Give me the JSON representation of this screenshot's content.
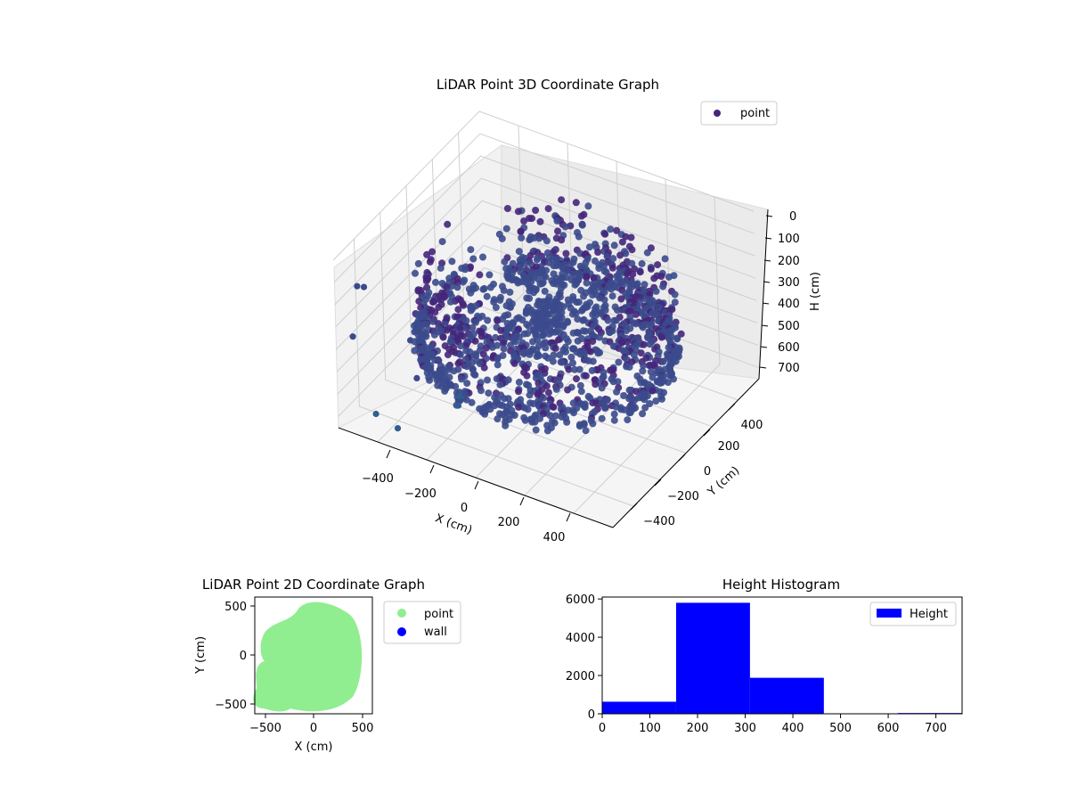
{
  "figure": {
    "chart_data": [
      {
        "type": "scatter3d",
        "title": "LiDAR Point 3D Coordinate Graph",
        "xlabel": "X (cm)",
        "ylabel": "Y (cm)",
        "zlabel": "H (cm)",
        "xlim": [
          -560,
          560
        ],
        "ylim": [
          -560,
          560
        ],
        "zlim": [
          750,
          0
        ],
        "xticks": [
          "−400",
          "−200",
          "0",
          "200",
          "400"
        ],
        "yticks": [
          "−400",
          "−200",
          "0",
          "200",
          "400"
        ],
        "zticks": [
          "0",
          "100",
          "200",
          "300",
          "400",
          "500",
          "600",
          "700"
        ],
        "legend": {
          "labels": [
            "point"
          ],
          "placement": "top-right"
        },
        "colors": {
          "point": "#45267a",
          "low": "#3b4a8c",
          "mid": "#2f5f8f"
        },
        "series": [
          {
            "name": "point",
            "shape": "ring-of-points (wall + floor cloud) plus sparse outliers",
            "outliers": [
              {
                "x": -520,
                "y": -460,
                "h": 160
              },
              {
                "x": -500,
                "y": -540,
                "h": 330
              },
              {
                "x": -470,
                "y": -500,
                "h": 120
              },
              {
                "x": -420,
                "y": -530,
                "h": 650
              },
              {
                "x": -360,
                "y": -480,
                "h": 720
              },
              {
                "x": -330,
                "y": -420,
                "h": 350
              },
              {
                "x": -280,
                "y": -470,
                "h": 470
              },
              {
                "x": -250,
                "y": -360,
                "h": 440
              },
              {
                "x": -230,
                "y": -390,
                "h": 460
              },
              {
                "x": -200,
                "y": -300,
                "h": 620
              },
              {
                "x": -190,
                "y": -330,
                "h": 640
              }
            ]
          }
        ]
      },
      {
        "type": "scatter",
        "title": "LiDAR Point 2D Coordinate Graph",
        "xlabel": "X (cm)",
        "ylabel": "Y (cm)",
        "xlim": [
          -600,
          600
        ],
        "ylim": [
          -600,
          600
        ],
        "xticks": [
          "−500",
          "0",
          "500"
        ],
        "yticks": [
          "500",
          "0",
          "−500"
        ],
        "legend": {
          "labels": [
            "point",
            "wall"
          ],
          "placement": "outside-right"
        },
        "colors": {
          "point": "#90ee90",
          "wall": "#0000ff"
        },
        "series": [
          {
            "name": "point",
            "shape": "filled disk of radius ~480 cm with notch at left"
          },
          {
            "name": "wall",
            "values": []
          }
        ]
      },
      {
        "type": "bar",
        "title": "Height Histogram",
        "xlabel": "",
        "ylabel": "",
        "xlim": [
          0,
          755
        ],
        "ylim": [
          0,
          6100
        ],
        "xticks": [
          "0",
          "100",
          "200",
          "300",
          "400",
          "500",
          "600",
          "700"
        ],
        "yticks": [
          "0",
          "2000",
          "4000",
          "6000"
        ],
        "legend": {
          "labels": [
            "Height"
          ],
          "placement": "upper-right"
        },
        "colors": {
          "bar": "#0000ff"
        },
        "bins": [
          {
            "start": 0,
            "end": 155,
            "count": 630
          },
          {
            "start": 155,
            "end": 310,
            "count": 5800
          },
          {
            "start": 310,
            "end": 465,
            "count": 1880
          },
          {
            "start": 465,
            "end": 620,
            "count": 0
          },
          {
            "start": 620,
            "end": 755,
            "count": 40
          }
        ]
      }
    ]
  }
}
